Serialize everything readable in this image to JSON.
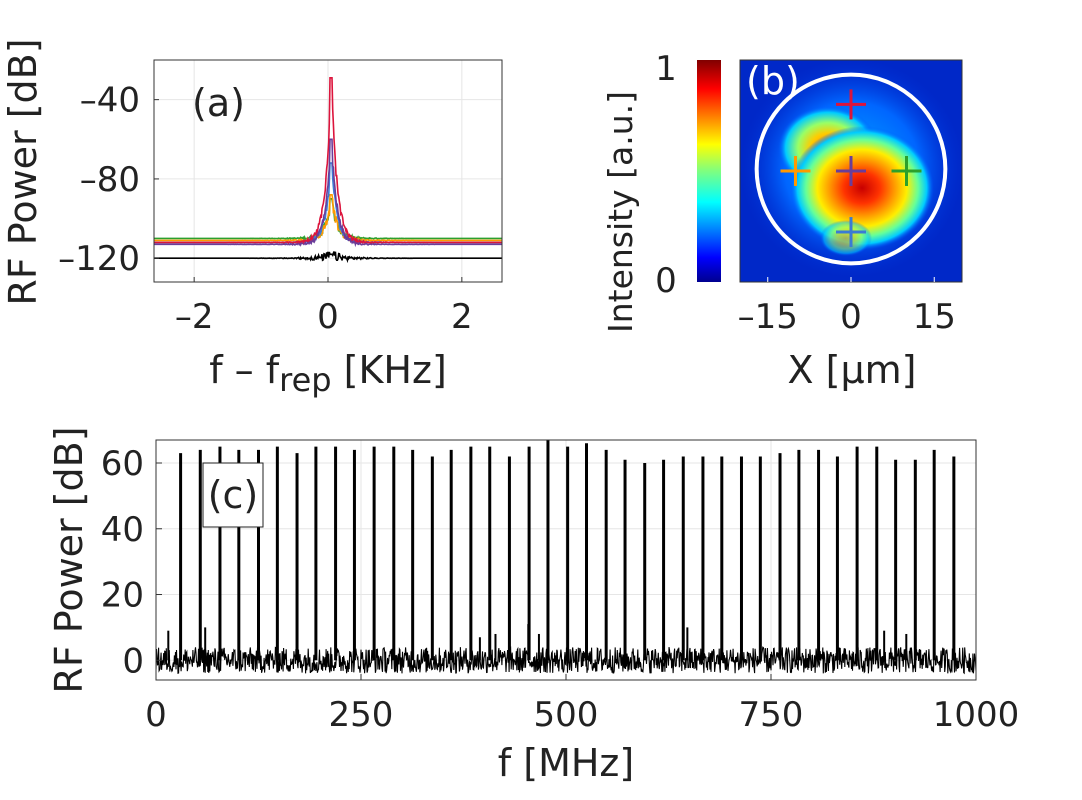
{
  "chart_data": [
    {
      "id": "a",
      "type": "line",
      "panel_label": "(a)",
      "xlabel": "f – f",
      "xlabel_sub": "rep",
      "xlabel_unit": " [KHz]",
      "ylabel": "RF Power [dB]",
      "xlim": [
        -2.6,
        2.6
      ],
      "ylim": [
        -132,
        -20
      ],
      "xticks": [
        -2,
        0,
        2
      ],
      "xtick_labels": [
        "–2",
        "0",
        "2"
      ],
      "yticks": [
        -120,
        -80,
        -40
      ],
      "ytick_labels": [
        "–120",
        "–80",
        "–40"
      ],
      "grid": true,
      "noise_floor": [
        -126,
        -110
      ],
      "series": [
        {
          "name": "black",
          "color": "#000000",
          "peak": -118,
          "base": [
            -132,
            -120
          ]
        },
        {
          "name": "green",
          "color": "#2ca02c",
          "peak": -90,
          "base": [
            -124,
            -110
          ]
        },
        {
          "name": "orange",
          "color": "#ff9900",
          "peak": -88,
          "base": [
            -124,
            -111
          ]
        },
        {
          "name": "blue",
          "color": "#3b7bd4",
          "peak": -72,
          "base": [
            -124,
            -112
          ]
        },
        {
          "name": "purple",
          "color": "#6a3d9a",
          "peak": -60,
          "base": [
            -124,
            -113
          ]
        },
        {
          "name": "red",
          "color": "#dc143c",
          "peak": -29,
          "base": [
            -124,
            -112
          ]
        }
      ]
    },
    {
      "id": "b",
      "type": "heatmap",
      "panel_label": "(b)",
      "xlabel": "X [μm]",
      "xlim": [
        -20,
        20
      ],
      "xticks": [
        -15,
        0,
        15
      ],
      "xtick_labels": [
        "–15",
        "0",
        "15"
      ],
      "colorbar_label": "Intensity [a.u.]",
      "colorbar_ticks": [
        "0",
        "1"
      ],
      "colormap": "jet",
      "circle_radius": 17,
      "markers": [
        {
          "x": 0,
          "y": 12,
          "color": "#dc143c"
        },
        {
          "x": -10,
          "y": 0,
          "color": "#ff9900"
        },
        {
          "x": 0,
          "y": 0,
          "color": "#6a3d9a"
        },
        {
          "x": 10,
          "y": 0,
          "color": "#2ca02c"
        },
        {
          "x": 0,
          "y": -11,
          "color": "#3b7bd4"
        }
      ]
    },
    {
      "id": "c",
      "type": "line",
      "panel_label": "(c)",
      "xlabel": "f [MHz]",
      "ylabel": "RF Power [dB]",
      "xlim": [
        0,
        1000
      ],
      "ylim": [
        -6,
        67
      ],
      "xticks": [
        0,
        250,
        500,
        750,
        1000
      ],
      "xtick_labels": [
        "0",
        "250",
        "500",
        "750",
        "1000"
      ],
      "yticks": [
        0,
        20,
        40,
        60
      ],
      "ytick_labels": [
        "0",
        "20",
        "40",
        "60"
      ],
      "grid": true,
      "color": "#000000",
      "noise_range": [
        -4,
        4
      ],
      "comb_spacing_MHz": 23.5,
      "peaks": [
        {
          "f": 30,
          "db": 63
        },
        {
          "f": 54,
          "db": 64
        },
        {
          "f": 78,
          "db": 65
        },
        {
          "f": 101,
          "db": 64
        },
        {
          "f": 125,
          "db": 64
        },
        {
          "f": 148,
          "db": 65
        },
        {
          "f": 172,
          "db": 63
        },
        {
          "f": 195,
          "db": 65
        },
        {
          "f": 219,
          "db": 65
        },
        {
          "f": 242,
          "db": 64
        },
        {
          "f": 266,
          "db": 65
        },
        {
          "f": 290,
          "db": 65
        },
        {
          "f": 313,
          "db": 64
        },
        {
          "f": 337,
          "db": 62
        },
        {
          "f": 360,
          "db": 64
        },
        {
          "f": 384,
          "db": 65
        },
        {
          "f": 407,
          "db": 65
        },
        {
          "f": 431,
          "db": 62
        },
        {
          "f": 455,
          "db": 65
        },
        {
          "f": 478,
          "db": 67
        },
        {
          "f": 502,
          "db": 65
        },
        {
          "f": 525,
          "db": 66
        },
        {
          "f": 549,
          "db": 64
        },
        {
          "f": 572,
          "db": 61
        },
        {
          "f": 596,
          "db": 60
        },
        {
          "f": 619,
          "db": 61
        },
        {
          "f": 643,
          "db": 62
        },
        {
          "f": 667,
          "db": 62
        },
        {
          "f": 690,
          "db": 62
        },
        {
          "f": 714,
          "db": 62
        },
        {
          "f": 737,
          "db": 62
        },
        {
          "f": 761,
          "db": 63
        },
        {
          "f": 784,
          "db": 64
        },
        {
          "f": 808,
          "db": 64
        },
        {
          "f": 831,
          "db": 62
        },
        {
          "f": 855,
          "db": 65
        },
        {
          "f": 879,
          "db": 65
        },
        {
          "f": 902,
          "db": 61
        },
        {
          "f": 926,
          "db": 61
        },
        {
          "f": 949,
          "db": 64
        },
        {
          "f": 973,
          "db": 62
        }
      ],
      "spurs": [
        {
          "f": 15,
          "db": 9
        },
        {
          "f": 60,
          "db": 10
        },
        {
          "f": 395,
          "db": 7
        },
        {
          "f": 414,
          "db": 8
        },
        {
          "f": 454,
          "db": 11
        },
        {
          "f": 467,
          "db": 8
        },
        {
          "f": 648,
          "db": 10
        },
        {
          "f": 888,
          "db": 9
        },
        {
          "f": 915,
          "db": 8
        }
      ]
    }
  ]
}
